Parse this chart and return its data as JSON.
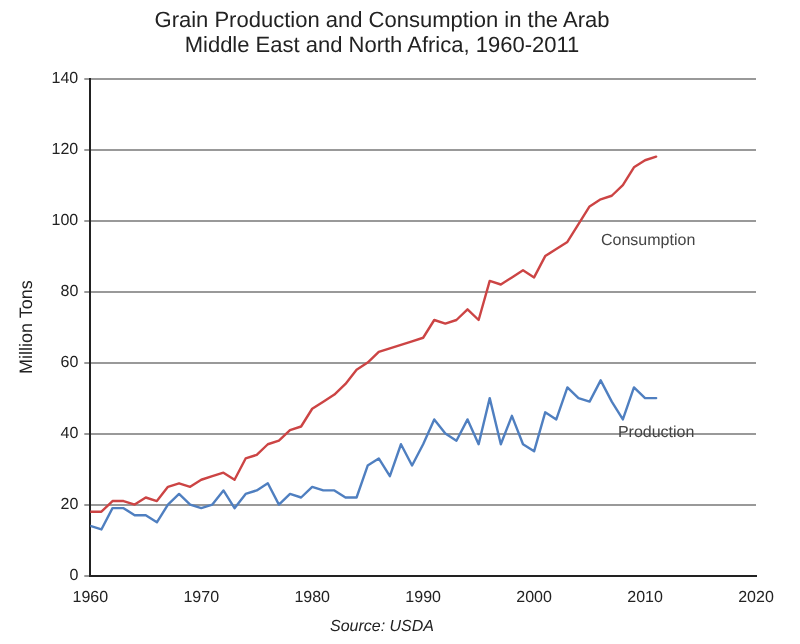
{
  "chart_data": {
    "type": "line",
    "title": "Grain Production and Consumption in the Arab Middle East and North Africa, 1960-2011",
    "ylabel": "Million Tons",
    "annotations": [
      "Source: USDA"
    ],
    "x": [
      1960,
      1961,
      1962,
      1963,
      1964,
      1965,
      1966,
      1967,
      1968,
      1969,
      1970,
      1971,
      1972,
      1973,
      1974,
      1975,
      1976,
      1977,
      1978,
      1979,
      1980,
      1981,
      1982,
      1983,
      1984,
      1985,
      1986,
      1987,
      1988,
      1989,
      1990,
      1991,
      1992,
      1993,
      1994,
      1995,
      1996,
      1997,
      1998,
      1999,
      2000,
      2001,
      2002,
      2003,
      2004,
      2005,
      2006,
      2007,
      2008,
      2009,
      2010,
      2011
    ],
    "series": [
      {
        "name": "Consumption",
        "color": "#cc4444",
        "values": [
          18,
          18,
          21,
          21,
          20,
          22,
          21,
          25,
          26,
          25,
          27,
          28,
          29,
          27,
          33,
          34,
          37,
          38,
          41,
          42,
          47,
          49,
          51,
          54,
          58,
          60,
          63,
          64,
          65,
          66,
          67,
          72,
          71,
          72,
          75,
          72,
          83,
          82,
          84,
          86,
          84,
          90,
          92,
          94,
          99,
          104,
          106,
          107,
          110,
          115,
          117,
          118
        ]
      },
      {
        "name": "Production",
        "color": "#4f7fc0",
        "values": [
          14,
          13,
          19,
          19,
          17,
          17,
          15,
          20,
          23,
          20,
          19,
          20,
          24,
          19,
          23,
          24,
          26,
          20,
          23,
          22,
          25,
          24,
          24,
          22,
          22,
          31,
          33,
          28,
          37,
          31,
          37,
          44,
          40,
          38,
          44,
          37,
          50,
          37,
          45,
          37,
          35,
          46,
          44,
          53,
          50,
          49,
          55,
          49,
          44,
          53,
          50,
          50
        ]
      }
    ],
    "xlim": [
      1960,
      2020
    ],
    "xticks": [
      1960,
      1970,
      1980,
      1990,
      2000,
      2010,
      2020
    ],
    "ylim": [
      0,
      140
    ],
    "yticks": [
      0,
      20,
      40,
      60,
      80,
      100,
      120,
      140
    ],
    "grid": "y",
    "legend": false,
    "marker": "none",
    "line_style": "solid"
  }
}
